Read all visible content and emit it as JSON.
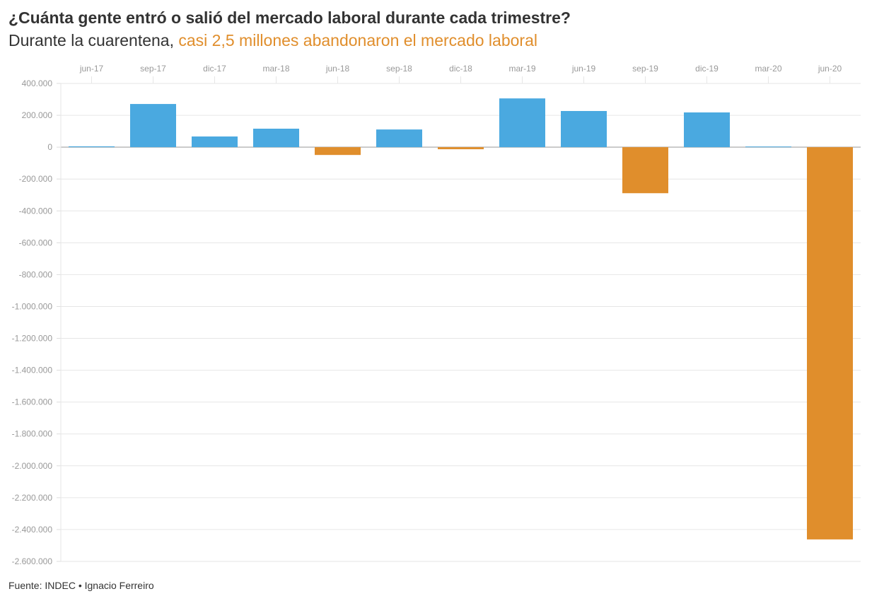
{
  "title": "¿Cuánta gente entró o salió del mercado laboral durante cada trimestre?",
  "subtitle_plain": "Durante la cuarentena, ",
  "subtitle_highlight": "casi 2,5 millones abandonaron el mercado laboral",
  "source": "Fuente: INDEC • Ignacio Ferreiro",
  "chart_data": {
    "type": "bar",
    "title": "¿Cuánta gente entró o salió del mercado laboral durante cada trimestre?",
    "categories": [
      "jun-17",
      "sep-17",
      "dic-17",
      "mar-18",
      "jun-18",
      "sep-18",
      "dic-18",
      "mar-19",
      "jun-19",
      "sep-19",
      "dic-19",
      "mar-20",
      "jun-20"
    ],
    "values": [
      5000,
      271000,
      67000,
      116000,
      -49000,
      111000,
      -13000,
      306000,
      227000,
      -289000,
      218000,
      4000,
      -2462000
    ],
    "ylim": [
      -2600000,
      400000
    ],
    "yticks": [
      400000,
      200000,
      0,
      -200000,
      -400000,
      -600000,
      -800000,
      -1000000,
      -1200000,
      -1400000,
      -1600000,
      -1800000,
      -2000000,
      -2200000,
      -2400000,
      -2600000
    ],
    "ytick_labels": [
      "400.000",
      "200.000",
      "0",
      "-200.000",
      "-400.000",
      "-600.000",
      "-800.000",
      "-1.000.000",
      "-1.200.000",
      "-1.400.000",
      "-1.600.000",
      "-1.800.000",
      "-2.000.000",
      "-2.200.000",
      "-2.400.000",
      "-2.600.000"
    ],
    "xaxis_position": "top",
    "grid": true,
    "colors": {
      "positive": "#4aa9e0",
      "negative": "#e08e2c"
    }
  }
}
